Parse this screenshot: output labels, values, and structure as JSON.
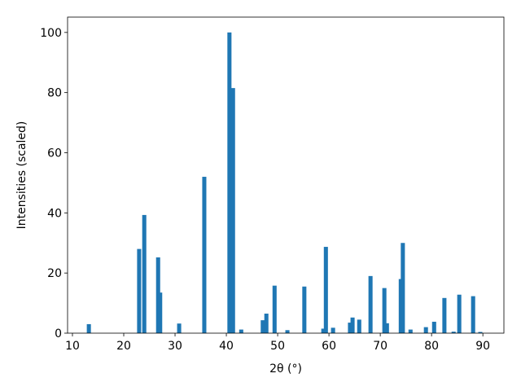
{
  "chart_data": {
    "type": "bar",
    "xlabel": "2θ (°)",
    "ylabel": "Intensities (scaled)",
    "x": [
      13.2,
      23.0,
      24.0,
      26.7,
      27.1,
      30.8,
      35.7,
      40.6,
      41.3,
      42.9,
      47.1,
      47.8,
      49.4,
      51.9,
      55.2,
      58.9,
      59.4,
      60.8,
      64.1,
      64.6,
      65.9,
      68.1,
      70.8,
      71.3,
      74.0,
      74.4,
      75.9,
      78.9,
      80.5,
      82.5,
      84.3,
      85.4,
      88.1,
      89.5
    ],
    "values": [
      3,
      28,
      39.3,
      25.2,
      13.5,
      3.2,
      52,
      100,
      81.5,
      1.2,
      4.3,
      6.5,
      15.8,
      1,
      15.5,
      1.5,
      28.7,
      1.8,
      3.5,
      5.2,
      4.5,
      19,
      15,
      3.3,
      18,
      30,
      1.2,
      2,
      3.8,
      11.7,
      0.5,
      12.8,
      12.3,
      0.4
    ],
    "color": "#1f77b4",
    "xlim": [
      9.05,
      94.1
    ],
    "xticks": [
      10,
      20,
      30,
      40,
      50,
      60,
      70,
      80,
      90
    ],
    "ylim": [
      0,
      105.1
    ],
    "yticks": [
      0,
      20,
      40,
      60,
      80,
      100
    ]
  }
}
